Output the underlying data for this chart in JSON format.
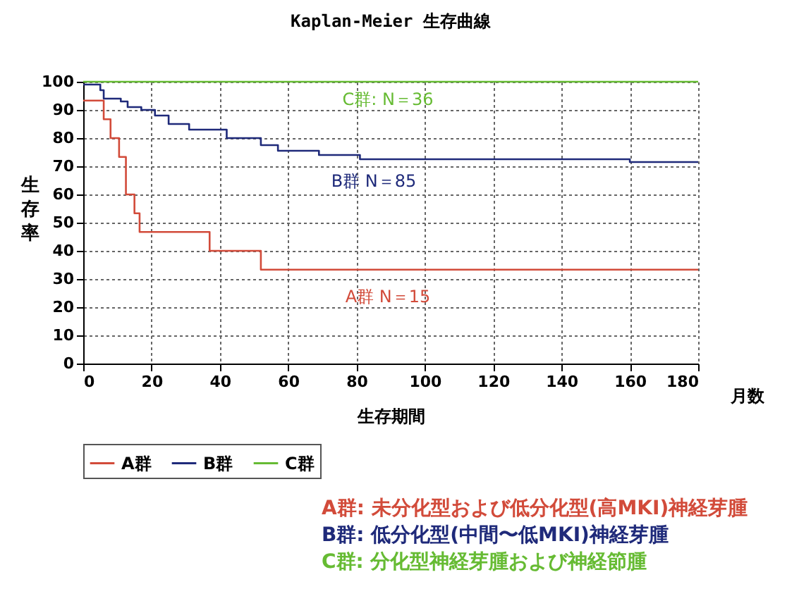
{
  "chart_data": {
    "type": "step",
    "title": "Kaplan-Meier 生存曲線",
    "xlabel": "生存期間",
    "ylabel": "生存率",
    "xlim": [
      0,
      180
    ],
    "xticks": [
      0,
      20,
      40,
      60,
      80,
      100,
      120,
      140,
      160,
      180
    ],
    "ylim": [
      0,
      100
    ],
    "yticks": [
      0,
      10,
      20,
      30,
      40,
      50,
      60,
      70,
      80,
      90,
      100
    ],
    "grid": true,
    "legend": "bottom",
    "series": [
      {
        "name": "A群",
        "color": "#d24b3a",
        "x": [
          0,
          6,
          8,
          10.5,
          12.5,
          15,
          16.5,
          37,
          52,
          180
        ],
        "values": [
          93.3,
          86.7,
          80,
          73.3,
          60,
          53.3,
          46.7,
          40,
          33.3,
          33.3
        ]
      },
      {
        "name": "B群",
        "color": "#1f2a7a",
        "x": [
          0,
          5,
          6,
          11,
          13,
          17,
          21,
          25,
          31,
          42,
          52,
          57,
          69,
          81,
          160,
          180
        ],
        "values": [
          99,
          97,
          94,
          93,
          91,
          90,
          88,
          85,
          83,
          80,
          77.5,
          75.5,
          74,
          72.5,
          71.5,
          71.5
        ]
      },
      {
        "name": "C群",
        "color": "#66bb33",
        "x": [
          0,
          180
        ],
        "values": [
          100,
          100
        ]
      }
    ],
    "annotations": [
      "A群 N＝15",
      "B群 N＝85",
      "C群: N＝36",
      "月数",
      "A群:  未分化型および低分化型(高MKI)神経芽腫",
      "B群:  低分化型(中間〜低MKI)神経芽腫",
      "C群:  分化型神経芽腫および神経節腫"
    ]
  }
}
